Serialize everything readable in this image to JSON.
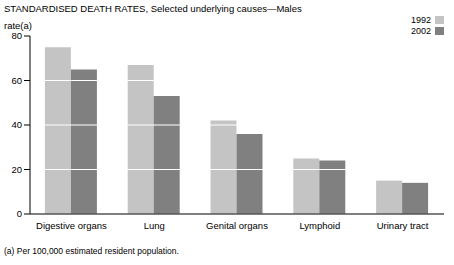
{
  "chart_data": {
    "type": "bar",
    "title": "STANDARDISED DEATH RATES, Selected underlying causes—Males",
    "y_label": "rate(a)",
    "annotations": [
      "(a) Per 100,000 estimated resident population."
    ],
    "categories": [
      "Digestive organs",
      "Lung",
      "Genital organs",
      "Lymphoid",
      "Urinary tract"
    ],
    "series": [
      {
        "name": "1992",
        "color": "#c4c4c4",
        "values": [
          75,
          67,
          42,
          25,
          15
        ]
      },
      {
        "name": "2002",
        "color": "#808080",
        "values": [
          65,
          53,
          36,
          24,
          14
        ]
      }
    ],
    "ylim": [
      0,
      80
    ],
    "yticks": [
      0,
      20,
      40,
      60,
      80
    ],
    "grid": true,
    "legend": "top-right"
  }
}
